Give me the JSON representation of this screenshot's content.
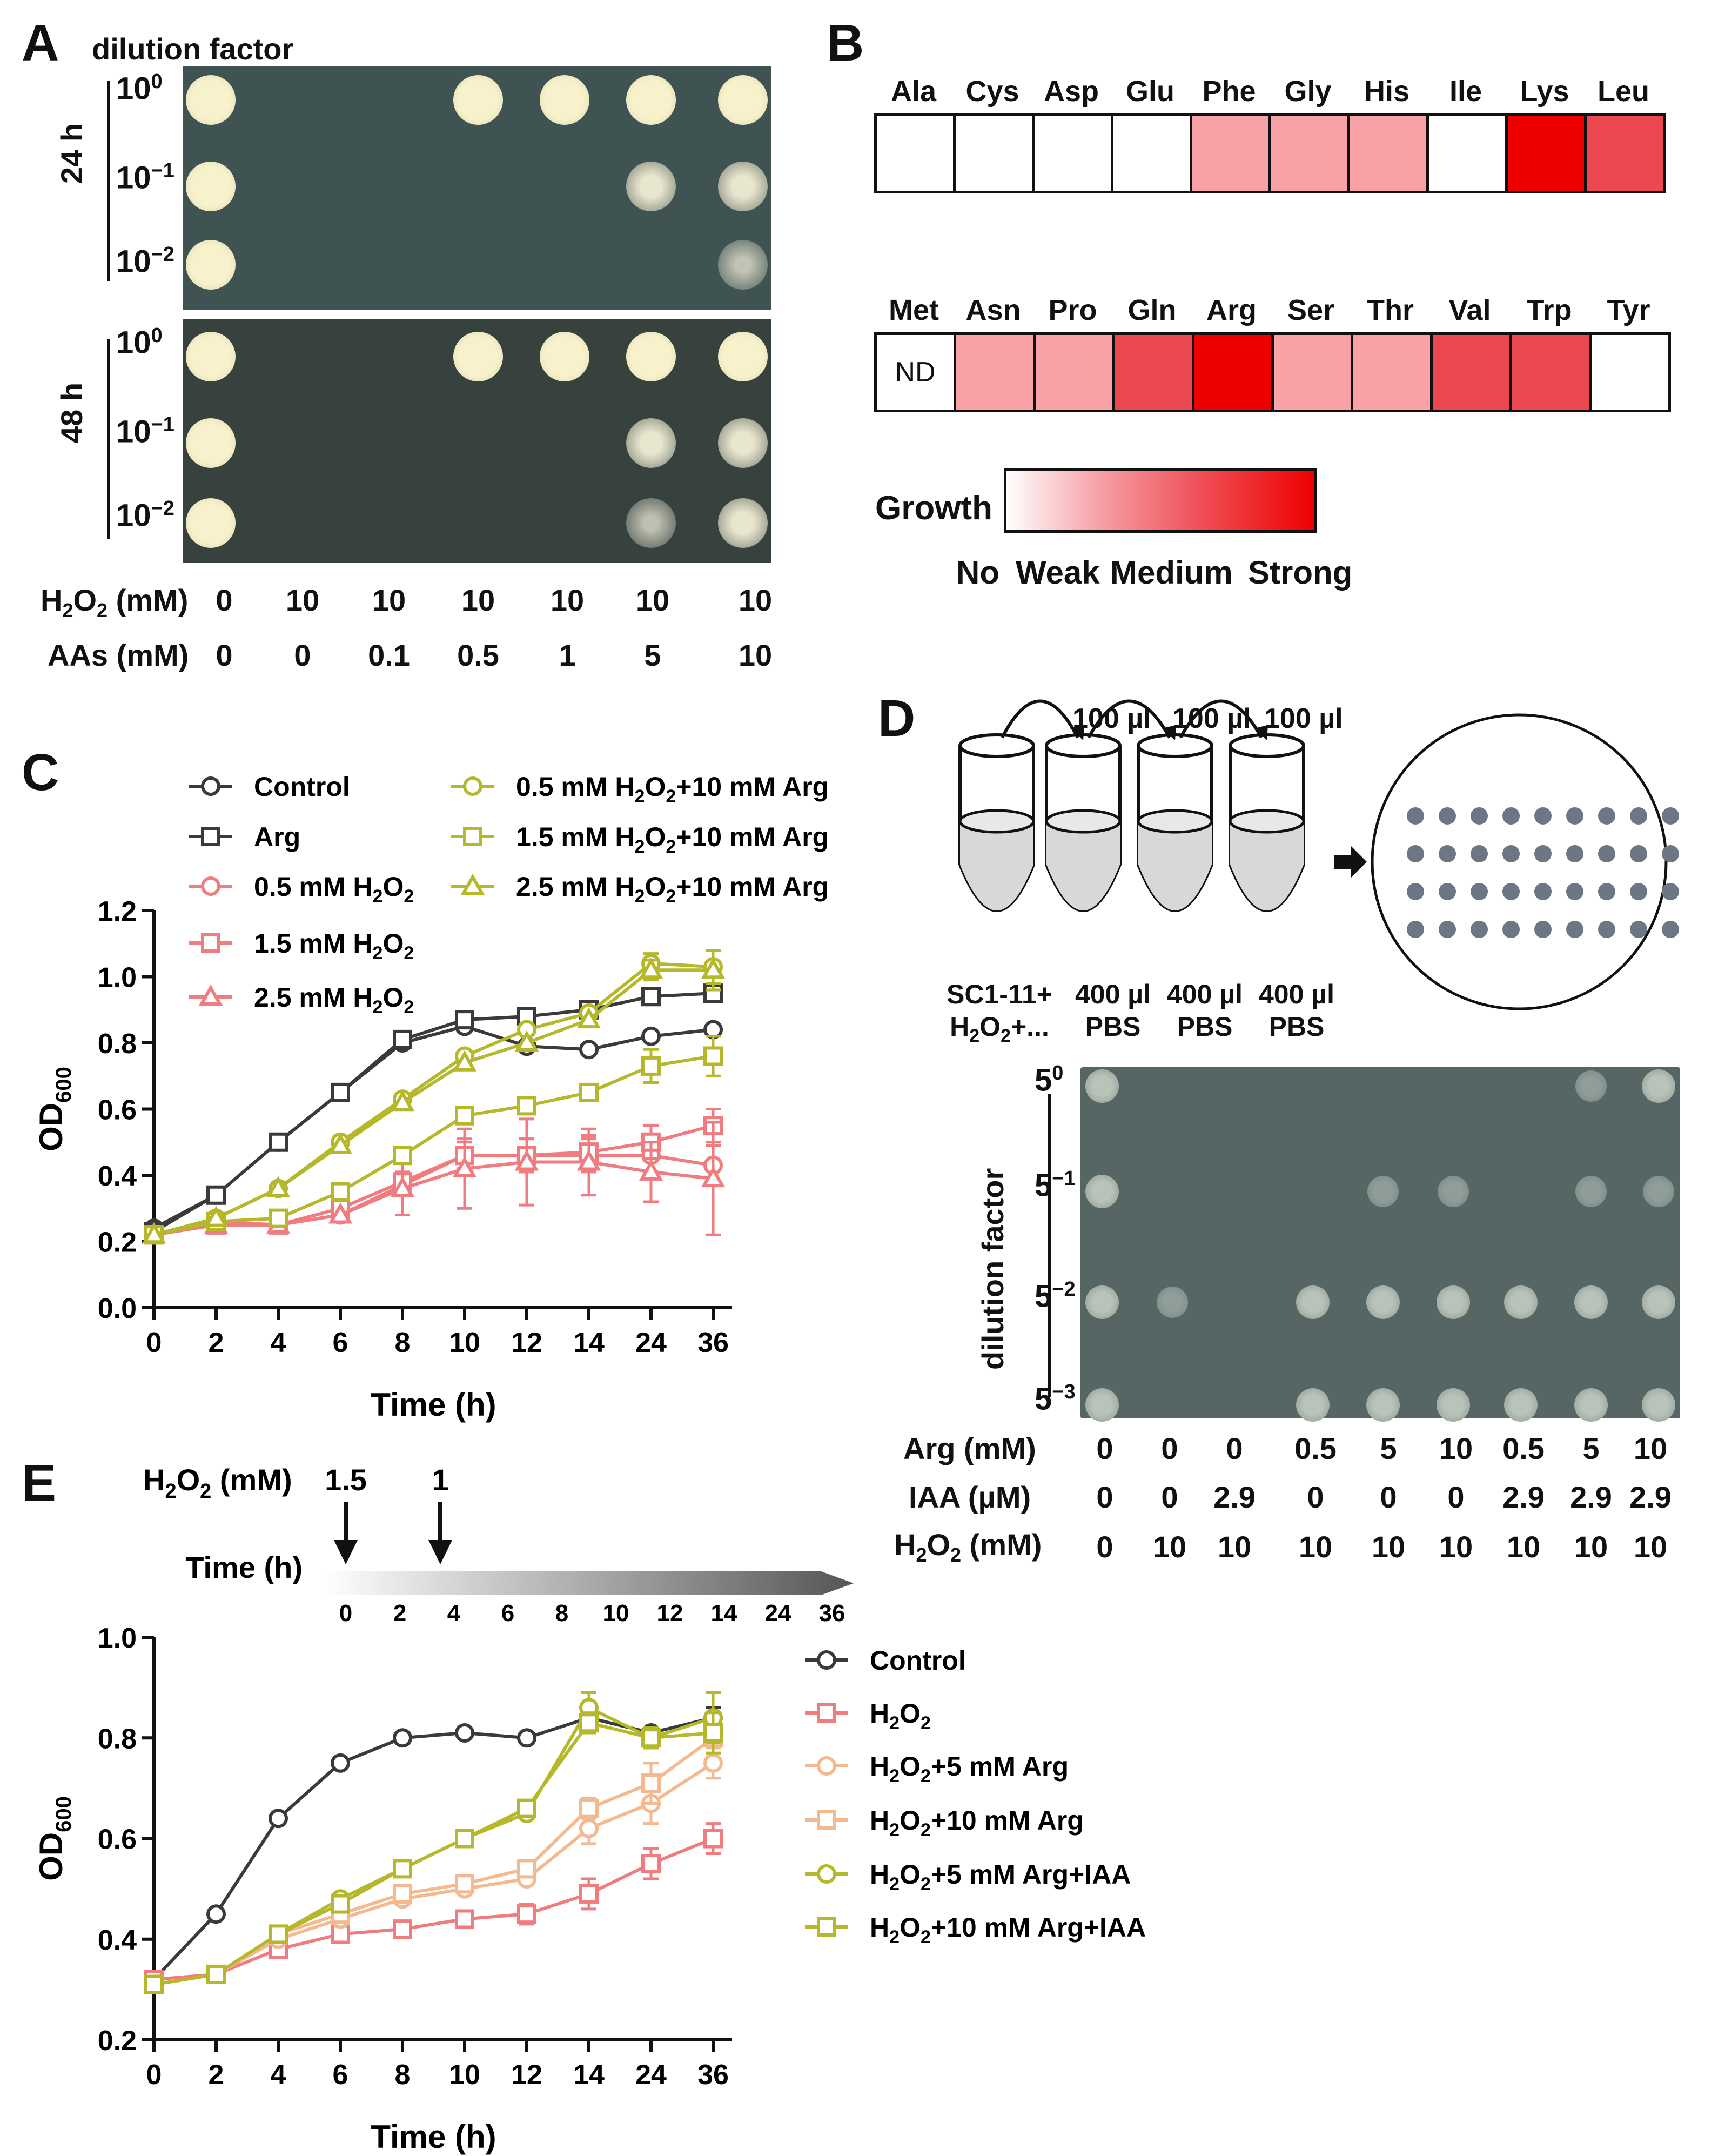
{
  "panelA": {
    "label": "A",
    "title": "dilution factor",
    "time_labels": [
      "24 h",
      "48 h"
    ],
    "dilutions": [
      {
        "b": "10",
        "e": "0"
      },
      {
        "b": "10",
        "e": "−1"
      },
      {
        "b": "10",
        "e": "−2"
      }
    ],
    "h2o2_label_pre": "H",
    "h2o2_label_sub": "2",
    "h2o2_label_mid": "O",
    "h2o2_label_sub2": "2",
    "h2o2_label_post": " (mM)",
    "aas_label": "AAs (mM)",
    "h2o2": [
      "0",
      "10",
      "10",
      "10",
      "10",
      "10",
      "10"
    ],
    "aas": [
      "0",
      "0",
      "0.1",
      "0.5",
      "1",
      "5",
      "10"
    ]
  },
  "panelB": {
    "label": "B",
    "row1": [
      {
        "aa": "Ala",
        "level": 0
      },
      {
        "aa": "Cys",
        "level": 0
      },
      {
        "aa": "Asp",
        "level": 0
      },
      {
        "aa": "Glu",
        "level": 0
      },
      {
        "aa": "Phe",
        "level": 1
      },
      {
        "aa": "Gly",
        "level": 1
      },
      {
        "aa": "His",
        "level": 1
      },
      {
        "aa": "Ile",
        "level": 0
      },
      {
        "aa": "Lys",
        "level": 3
      },
      {
        "aa": "Leu",
        "level": 2
      }
    ],
    "row2": [
      {
        "aa": "Met",
        "level": -1,
        "text": "ND"
      },
      {
        "aa": "Asn",
        "level": 1
      },
      {
        "aa": "Pro",
        "level": 1
      },
      {
        "aa": "Gln",
        "level": 2
      },
      {
        "aa": "Arg",
        "level": 3
      },
      {
        "aa": "Ser",
        "level": 1
      },
      {
        "aa": "Thr",
        "level": 1
      },
      {
        "aa": "Val",
        "level": 2
      },
      {
        "aa": "Trp",
        "level": 2
      },
      {
        "aa": "Tyr",
        "level": 0
      }
    ],
    "legend_title": "Growth",
    "legend_levels": [
      "No",
      "Weak",
      "Medium",
      "Strong"
    ],
    "colors": [
      "#ffffff",
      "#f8a2a8",
      "#ec4850",
      "#ee0000"
    ]
  },
  "panelC": {
    "label": "C",
    "xlabel": "Time (h)",
    "ylabel_main": "OD",
    "ylabel_sub": "600",
    "legend": [
      {
        "pre": "Control",
        "sub": "",
        "post": ""
      },
      {
        "pre": "Arg",
        "sub": "",
        "post": ""
      },
      {
        "pre": "0.5 mM H",
        "sub": "2",
        "mid": "O",
        "sub2": "2",
        "post": ""
      },
      {
        "pre": "1.5 mM H",
        "sub": "2",
        "mid": "O",
        "sub2": "2",
        "post": ""
      },
      {
        "pre": "2.5 mM H",
        "sub": "2",
        "mid": "O",
        "sub2": "2",
        "post": ""
      },
      {
        "pre": "0.5 mM H",
        "sub": "2",
        "mid": "O",
        "sub2": "2",
        "post": "+10 mM Arg"
      },
      {
        "pre": "1.5 mM H",
        "sub": "2",
        "mid": "O",
        "sub2": "2",
        "post": "+10 mM Arg"
      },
      {
        "pre": "2.5 mM H",
        "sub": "2",
        "mid": "O",
        "sub2": "2",
        "post": "+10 mM Arg"
      }
    ]
  },
  "panelD": {
    "label": "D",
    "transfer": [
      "100 µl",
      "100 µl",
      "100 µl"
    ],
    "tube_labels": [
      {
        "l1": "SC1-11+",
        "l2a": "H",
        "l2s": "2",
        "l2b": "O",
        "l2s2": "2",
        "l2c": "+..."
      },
      {
        "l1": "400 µl",
        "l2": "PBS"
      },
      {
        "l1": "400 µl",
        "l2": "PBS"
      },
      {
        "l1": "400 µl",
        "l2": "PBS"
      }
    ],
    "dilution_title": "dilution factor",
    "dilutions": [
      {
        "b": "5",
        "e": "0"
      },
      {
        "b": "5",
        "e": "−1"
      },
      {
        "b": "5",
        "e": "−2"
      },
      {
        "b": "5",
        "e": "−3"
      }
    ],
    "arg_label": "Arg (mM)",
    "iaa_label": "IAA (µM)",
    "arg": [
      "0",
      "0",
      "0",
      "0.5",
      "5",
      "10",
      "0.5",
      "5",
      "10"
    ],
    "iaa": [
      "0",
      "0",
      "2.9",
      "0",
      "0",
      "0",
      "2.9",
      "2.9",
      "2.9"
    ],
    "h2o2": [
      "0",
      "10",
      "10",
      "10",
      "10",
      "10",
      "10",
      "10",
      "10"
    ]
  },
  "panelE": {
    "label": "E",
    "h2o2_doses": [
      "1.5",
      "1"
    ],
    "time_label": "Time (h)",
    "xlabel": "Time (h)",
    "ylabel_main": "OD",
    "ylabel_sub": "600",
    "legend": [
      {
        "pre": "Control",
        "sub": "",
        "post": ""
      },
      {
        "pre": "H",
        "sub": "2",
        "mid": "O",
        "sub2": "2",
        "post": ""
      },
      {
        "pre": "H",
        "sub": "2",
        "mid": "O",
        "sub2": "2",
        "post": "+5 mM Arg"
      },
      {
        "pre": "H",
        "sub": "2",
        "mid": "O",
        "sub2": "2",
        "post": "+10 mM Arg"
      },
      {
        "pre": "H",
        "sub": "2",
        "mid": "O",
        "sub2": "2",
        "post": "+5 mM Arg+IAA"
      },
      {
        "pre": "H",
        "sub": "2",
        "mid": "O",
        "sub2": "2",
        "post": "+10 mM Arg+IAA"
      }
    ]
  },
  "chart_data": [
    {
      "type": "line",
      "panel": "C",
      "x": [
        "0",
        "2",
        "4",
        "6",
        "8",
        "10",
        "12",
        "14",
        "24",
        "36"
      ],
      "xlabel": "Time (h)",
      "ylabel": "OD600",
      "ylim": [
        0,
        1.2
      ],
      "yticks": [
        "0.0",
        "0.2",
        "0.4",
        "0.6",
        "0.8",
        "1.0",
        "1.2"
      ],
      "series": [
        {
          "name": "Control",
          "color": "#3a3a3a",
          "marker": "circle",
          "values": [
            0.24,
            0.34,
            0.5,
            0.65,
            0.8,
            0.85,
            0.79,
            0.78,
            0.82,
            0.84
          ],
          "err": [
            0,
            0,
            0,
            0,
            0,
            0,
            0,
            0,
            0,
            0
          ]
        },
        {
          "name": "Arg",
          "color": "#3a3a3a",
          "marker": "square",
          "values": [
            0.23,
            0.34,
            0.5,
            0.65,
            0.81,
            0.87,
            0.88,
            0.9,
            0.94,
            0.95
          ],
          "err": [
            0,
            0,
            0,
            0,
            0,
            0,
            0,
            0,
            0,
            0
          ]
        },
        {
          "name": "0.5 mM H2O2",
          "color": "#f07c80",
          "marker": "circle",
          "values": [
            0.22,
            0.26,
            0.25,
            0.28,
            0.37,
            0.46,
            0.46,
            0.46,
            0.46,
            0.43
          ],
          "err": [
            0,
            0,
            0,
            0,
            0.03,
            0.04,
            0.05,
            0.05,
            0.05,
            0.06
          ]
        },
        {
          "name": "1.5 mM H2O2",
          "color": "#f07c80",
          "marker": "square",
          "values": [
            0.22,
            0.25,
            0.25,
            0.3,
            0.38,
            0.46,
            0.46,
            0.47,
            0.5,
            0.55
          ],
          "err": [
            0,
            0,
            0,
            0,
            0.03,
            0.05,
            0.05,
            0.05,
            0.05,
            0.05
          ]
        },
        {
          "name": "2.5 mM H2O2",
          "color": "#f07c80",
          "marker": "triangle",
          "values": [
            0.22,
            0.25,
            0.25,
            0.28,
            0.36,
            0.42,
            0.44,
            0.44,
            0.41,
            0.39
          ],
          "err": [
            0,
            0,
            0,
            0,
            0.08,
            0.12,
            0.13,
            0.1,
            0.09,
            0.17
          ]
        },
        {
          "name": "0.5 mM H2O2+10 mM Arg",
          "color": "#b5b82a",
          "marker": "circle",
          "values": [
            0.22,
            0.27,
            0.36,
            0.5,
            0.63,
            0.76,
            0.84,
            0.89,
            1.04,
            1.03
          ],
          "err": [
            0,
            0,
            0,
            0,
            0,
            0,
            0,
            0,
            0.03,
            0.05
          ]
        },
        {
          "name": "1.5 mM H2O2+10 mM Arg",
          "color": "#b5b82a",
          "marker": "square",
          "values": [
            0.22,
            0.26,
            0.27,
            0.35,
            0.46,
            0.58,
            0.61,
            0.65,
            0.73,
            0.76
          ],
          "err": [
            0,
            0,
            0,
            0,
            0,
            0,
            0,
            0,
            0.05,
            0.06
          ]
        },
        {
          "name": "2.5 mM H2O2+10 mM Arg",
          "color": "#b5b82a",
          "marker": "triangle",
          "values": [
            0.22,
            0.27,
            0.36,
            0.49,
            0.62,
            0.74,
            0.8,
            0.87,
            1.02,
            1.02
          ],
          "err": [
            0,
            0,
            0,
            0,
            0,
            0,
            0,
            0,
            0.03,
            0.06
          ]
        }
      ]
    },
    {
      "type": "line",
      "panel": "E",
      "x": [
        "0",
        "2",
        "4",
        "6",
        "8",
        "10",
        "12",
        "14",
        "24",
        "36"
      ],
      "xlabel": "Time (h)",
      "ylabel": "OD600",
      "ylim": [
        0.2,
        1.0
      ],
      "yticks": [
        "0.2",
        "0.4",
        "0.6",
        "0.8",
        "1.0"
      ],
      "series": [
        {
          "name": "Control",
          "color": "#3a3a3a",
          "marker": "circle",
          "values": [
            0.32,
            0.45,
            0.64,
            0.75,
            0.8,
            0.81,
            0.8,
            0.84,
            0.81,
            0.84
          ],
          "err": [
            0,
            0,
            0,
            0,
            0,
            0,
            0,
            0,
            0,
            0.02
          ]
        },
        {
          "name": "H2O2",
          "color": "#f07c80",
          "marker": "square",
          "values": [
            0.32,
            0.33,
            0.38,
            0.41,
            0.42,
            0.44,
            0.45,
            0.49,
            0.55,
            0.6
          ],
          "err": [
            0,
            0,
            0,
            0,
            0,
            0,
            0.02,
            0.03,
            0.03,
            0.03
          ]
        },
        {
          "name": "H2O2+5 mM Arg",
          "color": "#f5b98f",
          "marker": "circle",
          "values": [
            0.31,
            0.33,
            0.4,
            0.44,
            0.48,
            0.5,
            0.52,
            0.62,
            0.67,
            0.75
          ],
          "err": [
            0,
            0,
            0,
            0,
            0,
            0,
            0,
            0.03,
            0.04,
            0.03
          ]
        },
        {
          "name": "H2O2+10 mM Arg",
          "color": "#f5b98f",
          "marker": "square",
          "values": [
            0.31,
            0.33,
            0.41,
            0.45,
            0.49,
            0.51,
            0.54,
            0.66,
            0.71,
            0.8
          ],
          "err": [
            0,
            0,
            0,
            0,
            0,
            0,
            0,
            0.02,
            0.04,
            0.03
          ]
        },
        {
          "name": "H2O2+5 mM Arg+IAA",
          "color": "#b5b82a",
          "marker": "circle",
          "values": [
            0.31,
            0.33,
            0.41,
            0.48,
            0.54,
            0.6,
            0.65,
            0.86,
            0.8,
            0.84
          ],
          "err": [
            0,
            0,
            0,
            0,
            0,
            0,
            0,
            0.03,
            0.02,
            0.05
          ]
        },
        {
          "name": "H2O2+10 mM Arg+IAA",
          "color": "#b5b82a",
          "marker": "square",
          "values": [
            0.31,
            0.33,
            0.41,
            0.47,
            0.54,
            0.6,
            0.66,
            0.83,
            0.8,
            0.81
          ],
          "err": [
            0,
            0,
            0,
            0,
            0,
            0,
            0,
            0.02,
            0.02,
            0.04
          ]
        }
      ]
    }
  ]
}
